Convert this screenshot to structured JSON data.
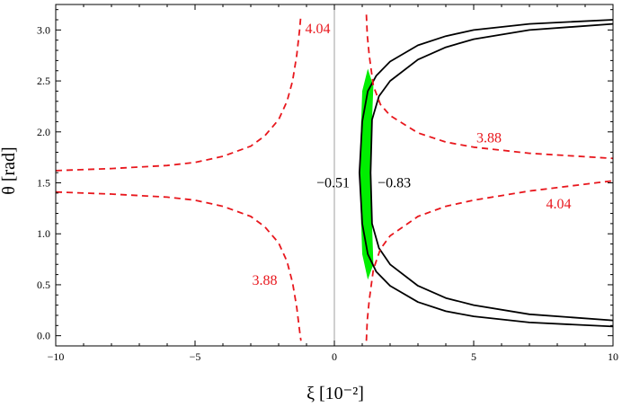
{
  "chart_data": {
    "type": "line",
    "xlabel": "ξ  [10⁻²]",
    "ylabel": "θ [rad]",
    "xlim": [
      -10,
      10
    ],
    "ylim": [
      -0.1,
      3.25
    ],
    "x_ticks": [
      -10,
      -5,
      0,
      5,
      10
    ],
    "y_ticks": [
      0.0,
      0.5,
      1.0,
      1.5,
      2.0,
      2.5,
      3.0
    ],
    "x_tick_labels": [
      "−10",
      "−5",
      "0",
      "5",
      "10"
    ],
    "y_tick_labels": [
      "0.0",
      "0.5",
      "1.0",
      "1.5",
      "2.0",
      "2.5",
      "3.0"
    ],
    "colors": {
      "red": "#e8171d",
      "black": "#000000",
      "green": "#00ee00",
      "vline": "#888888"
    },
    "red_curves": [
      {
        "id": "red-upper-left",
        "label": "4.04",
        "points": [
          [
            -10.0,
            1.62
          ],
          [
            -8.0,
            1.64
          ],
          [
            -6.0,
            1.67
          ],
          [
            -5.0,
            1.7
          ],
          [
            -4.0,
            1.76
          ],
          [
            -3.0,
            1.86
          ],
          [
            -2.5,
            1.96
          ],
          [
            -2.0,
            2.12
          ],
          [
            -1.7,
            2.3
          ],
          [
            -1.5,
            2.5
          ],
          [
            -1.35,
            2.75
          ],
          [
            -1.25,
            3.0
          ],
          [
            -1.2,
            3.15
          ]
        ]
      },
      {
        "id": "red-lower-left",
        "label": "3.88",
        "points": [
          [
            -10.0,
            1.41
          ],
          [
            -8.0,
            1.39
          ],
          [
            -6.0,
            1.36
          ],
          [
            -5.0,
            1.33
          ],
          [
            -4.0,
            1.27
          ],
          [
            -3.0,
            1.17
          ],
          [
            -2.5,
            1.07
          ],
          [
            -2.0,
            0.91
          ],
          [
            -1.7,
            0.73
          ],
          [
            -1.5,
            0.52
          ],
          [
            -1.35,
            0.28
          ],
          [
            -1.25,
            0.05
          ],
          [
            -1.2,
            -0.05
          ]
        ]
      },
      {
        "id": "red-upper-right",
        "label": "3.88",
        "points": [
          [
            1.15,
            3.15
          ],
          [
            1.18,
            2.95
          ],
          [
            1.25,
            2.75
          ],
          [
            1.4,
            2.45
          ],
          [
            1.65,
            2.27
          ],
          [
            2.0,
            2.16
          ],
          [
            3.0,
            1.99
          ],
          [
            4.0,
            1.9
          ],
          [
            5.0,
            1.85
          ],
          [
            7.0,
            1.79
          ],
          [
            10.0,
            1.74
          ]
        ]
      },
      {
        "id": "red-lower-right",
        "label": "4.04",
        "points": [
          [
            1.15,
            -0.05
          ],
          [
            1.18,
            0.15
          ],
          [
            1.25,
            0.35
          ],
          [
            1.4,
            0.65
          ],
          [
            1.65,
            0.85
          ],
          [
            2.0,
            0.98
          ],
          [
            3.0,
            1.17
          ],
          [
            4.0,
            1.27
          ],
          [
            5.0,
            1.33
          ],
          [
            7.0,
            1.42
          ],
          [
            10.0,
            1.52
          ]
        ]
      }
    ],
    "black_curves": [
      {
        "id": "black-outer",
        "label": "−0.51",
        "points": [
          [
            10.0,
            3.1
          ],
          [
            7.0,
            3.06
          ],
          [
            5.0,
            3.0
          ],
          [
            4.0,
            2.94
          ],
          [
            3.0,
            2.85
          ],
          [
            2.0,
            2.69
          ],
          [
            1.5,
            2.55
          ],
          [
            1.2,
            2.4
          ],
          [
            1.0,
            2.1
          ],
          [
            0.9,
            1.6
          ],
          [
            1.0,
            1.1
          ],
          [
            1.2,
            0.8
          ],
          [
            1.5,
            0.63
          ],
          [
            2.0,
            0.49
          ],
          [
            3.0,
            0.33
          ],
          [
            4.0,
            0.24
          ],
          [
            5.0,
            0.19
          ],
          [
            7.0,
            0.13
          ],
          [
            10.0,
            0.09
          ]
        ]
      },
      {
        "id": "black-inner",
        "label": "−0.83",
        "points": [
          [
            10.0,
            3.06
          ],
          [
            7.0,
            3.0
          ],
          [
            5.0,
            2.91
          ],
          [
            4.0,
            2.83
          ],
          [
            3.0,
            2.71
          ],
          [
            2.0,
            2.5
          ],
          [
            1.6,
            2.35
          ],
          [
            1.35,
            2.12
          ],
          [
            1.3,
            1.6
          ],
          [
            1.35,
            1.1
          ],
          [
            1.6,
            0.86
          ],
          [
            2.0,
            0.7
          ],
          [
            3.0,
            0.49
          ],
          [
            4.0,
            0.37
          ],
          [
            5.0,
            0.3
          ],
          [
            7.0,
            0.21
          ],
          [
            10.0,
            0.15
          ]
        ]
      }
    ],
    "green_region": {
      "points": [
        [
          1.2,
          2.62
        ],
        [
          1.4,
          2.45
        ],
        [
          1.35,
          2.12
        ],
        [
          1.3,
          1.6
        ],
        [
          1.35,
          1.1
        ],
        [
          1.4,
          0.7
        ],
        [
          1.2,
          0.55
        ],
        [
          1.0,
          0.8
        ],
        [
          0.9,
          1.6
        ],
        [
          1.0,
          2.4
        ]
      ]
    },
    "annotations": [
      {
        "id": "label-404-top",
        "text": "4.04",
        "x": -1.05,
        "y": 3.0,
        "color": "#e8171d",
        "anchor": "start"
      },
      {
        "id": "label-388-right",
        "text": "3.88",
        "x": 5.55,
        "y": 1.93,
        "color": "#e8171d",
        "anchor": "middle"
      },
      {
        "id": "label-404-right",
        "text": "4.04",
        "x": 8.05,
        "y": 1.28,
        "color": "#e8171d",
        "anchor": "middle"
      },
      {
        "id": "label-388-left",
        "text": "3.88",
        "x": -2.5,
        "y": 0.53,
        "color": "#e8171d",
        "anchor": "middle"
      },
      {
        "id": "label-051",
        "text": "−0.51",
        "x": 0.55,
        "y": 1.49,
        "color": "#000000",
        "anchor": "end"
      },
      {
        "id": "label-083",
        "text": "−0.83",
        "x": 1.55,
        "y": 1.49,
        "color": "#000000",
        "anchor": "start"
      }
    ]
  }
}
